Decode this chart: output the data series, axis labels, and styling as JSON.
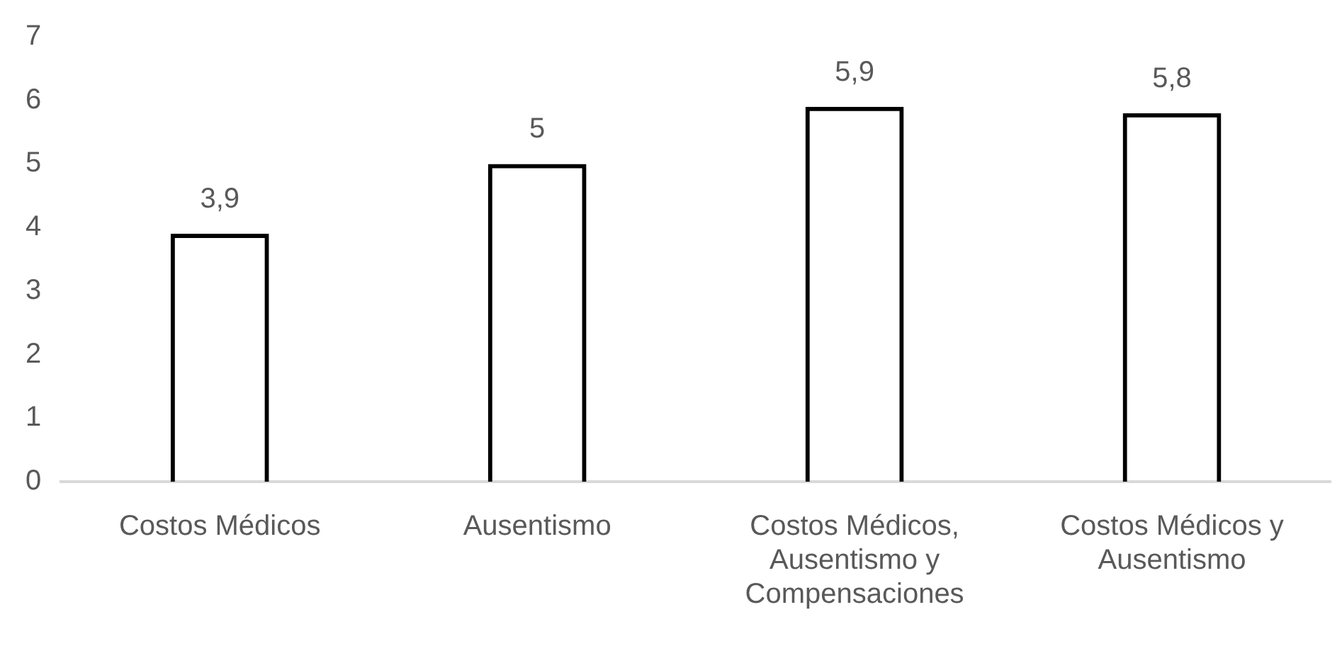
{
  "chart_data": {
    "type": "bar",
    "categories": [
      "Costos Médicos",
      "Ausentismo",
      "Costos Médicos, Ausentismo y Compensaciones",
      "Costos Médicos y Ausentismo"
    ],
    "values": [
      3.9,
      5,
      5.9,
      5.8
    ],
    "value_labels": [
      "3,9",
      "5",
      "5,9",
      "5,8"
    ],
    "color": "#000000",
    "ylim": [
      0,
      7
    ],
    "yticks": [
      0,
      1,
      2,
      3,
      4,
      5,
      6,
      7
    ],
    "grid": false,
    "legend": false
  }
}
